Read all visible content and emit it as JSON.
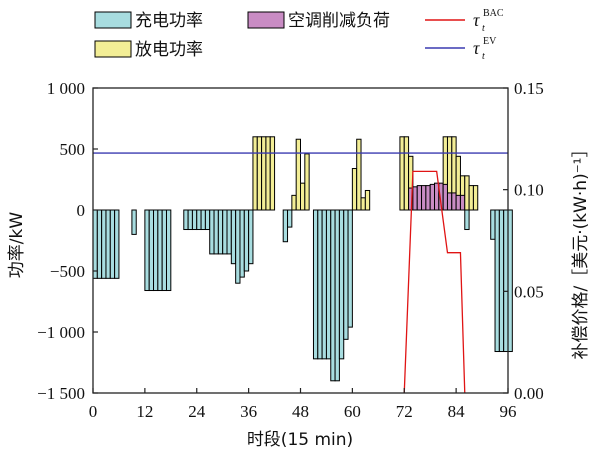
{
  "chart_data": {
    "type": "bar",
    "title": "",
    "xlabel": "时段(15 min)",
    "ylabel_left": "功率/kW",
    "ylabel_right": "补偿价格/［美元·(kW·h)⁻¹］",
    "x_range": [
      0,
      96
    ],
    "y_left_range": [
      -1500,
      1000
    ],
    "y_right_range": [
      0,
      0.15
    ],
    "x_ticks": [
      0,
      12,
      24,
      36,
      48,
      60,
      72,
      84,
      96
    ],
    "x_tick_labels": [
      "0",
      "12",
      "24",
      "36",
      "48",
      "60",
      "72",
      "84",
      "96"
    ],
    "y_left_ticks": [
      1000,
      500,
      0,
      -500,
      -1000,
      -1500
    ],
    "y_left_tick_labels": [
      "1 000",
      "500",
      "0",
      "−500",
      "−1 000",
      "−1 500"
    ],
    "y_right_ticks": [
      0.15,
      0.1,
      0.05,
      0.0
    ],
    "y_right_tick_labels": [
      "0.15",
      "0.10",
      "0.05",
      "0.00"
    ],
    "legend": {
      "placement": "top",
      "items": [
        {
          "key": "charge",
          "label": "充电功率",
          "color": "#a8dde0"
        },
        {
          "key": "discharge",
          "label": "放电功率",
          "color": "#f3ee96"
        },
        {
          "key": "ac",
          "label": "空调削减负荷",
          "color": "#c98cc4"
        },
        {
          "key": "tau_bac",
          "label": "τ",
          "sup": "BAC",
          "sub": "t",
          "color": "#e01414"
        },
        {
          "key": "tau_ev",
          "label": "τ",
          "sup": "EV",
          "sub": "t",
          "color": "#3a3ab0"
        }
      ]
    },
    "series": [
      {
        "key": "charge",
        "axis": "left",
        "values": [
          -560,
          -560,
          -560,
          -560,
          -560,
          -560,
          0,
          0,
          0,
          -200,
          0,
          0,
          -660,
          -660,
          -660,
          -660,
          -660,
          -660,
          0,
          0,
          0,
          -160,
          -160,
          -160,
          -160,
          -160,
          -160,
          -360,
          -360,
          -360,
          -360,
          -360,
          -440,
          -600,
          -550,
          -500,
          -440,
          0,
          0,
          0,
          0,
          0,
          0,
          0,
          -260,
          -140,
          0,
          0,
          0,
          0,
          0,
          -1220,
          -1220,
          -1220,
          -1220,
          -1400,
          -1400,
          -1220,
          -1060,
          -960,
          0,
          0,
          0,
          0,
          0,
          0,
          0,
          0,
          0,
          0,
          0,
          0,
          0,
          0,
          0,
          0,
          0,
          0,
          0,
          0,
          0,
          0,
          0,
          0,
          0,
          0,
          -160,
          0,
          0,
          0,
          0,
          0,
          -240,
          -1160,
          -1160,
          -1160,
          -1160
        ]
      },
      {
        "key": "discharge",
        "axis": "left",
        "values": [
          0,
          0,
          0,
          0,
          0,
          0,
          0,
          0,
          0,
          0,
          0,
          0,
          0,
          0,
          0,
          0,
          0,
          0,
          0,
          0,
          0,
          0,
          0,
          0,
          0,
          0,
          0,
          0,
          0,
          0,
          0,
          0,
          0,
          0,
          0,
          0,
          0,
          600,
          600,
          600,
          600,
          600,
          0,
          0,
          0,
          0,
          120,
          580,
          220,
          460,
          0,
          0,
          0,
          0,
          0,
          0,
          0,
          0,
          0,
          0,
          340,
          580,
          100,
          160,
          0,
          0,
          0,
          0,
          0,
          0,
          0,
          600,
          600,
          440,
          0,
          0,
          0,
          0,
          0,
          0,
          0,
          600,
          600,
          600,
          440,
          280,
          280,
          200,
          200,
          0,
          0,
          0,
          0,
          0,
          0,
          0,
          0
        ]
      },
      {
        "key": "ac",
        "axis": "left",
        "values": [
          0,
          0,
          0,
          0,
          0,
          0,
          0,
          0,
          0,
          0,
          0,
          0,
          0,
          0,
          0,
          0,
          0,
          0,
          0,
          0,
          0,
          0,
          0,
          0,
          0,
          0,
          0,
          0,
          0,
          0,
          0,
          0,
          0,
          0,
          0,
          0,
          0,
          0,
          0,
          0,
          0,
          0,
          0,
          0,
          0,
          0,
          0,
          0,
          0,
          0,
          0,
          0,
          0,
          0,
          0,
          0,
          0,
          0,
          0,
          0,
          0,
          0,
          0,
          0,
          0,
          0,
          0,
          0,
          0,
          0,
          0,
          0,
          0,
          180,
          190,
          200,
          200,
          200,
          210,
          220,
          220,
          210,
          140,
          140,
          120,
          120,
          0,
          0,
          0,
          0,
          0,
          0,
          0,
          0,
          0,
          0,
          0
        ]
      },
      {
        "key": "tau_bac",
        "axis": "right",
        "type": "line",
        "points": [
          [
            72,
            0
          ],
          [
            74,
            0.109
          ],
          [
            79.5,
            0.109
          ],
          [
            82,
            0.069
          ],
          [
            85,
            0.069
          ],
          [
            86,
            0
          ]
        ]
      },
      {
        "key": "tau_ev",
        "axis": "right",
        "type": "line",
        "points": [
          [
            0,
            0.118
          ],
          [
            96,
            0.118
          ]
        ]
      }
    ]
  }
}
